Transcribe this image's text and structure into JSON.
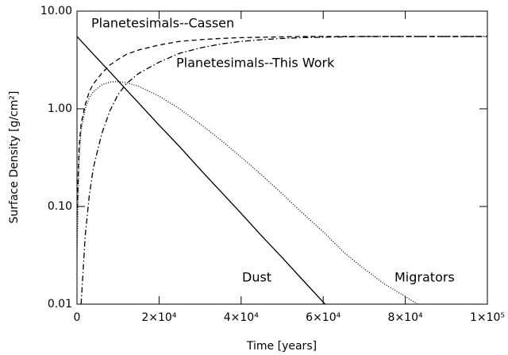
{
  "chart_data": {
    "type": "line",
    "log_y": true,
    "xlabel": "Time [years]",
    "ylabel": "Surface Density [g/cm²]",
    "x": [
      0,
      500,
      1000,
      2000,
      3000,
      4000,
      6000,
      8000,
      10000,
      12000,
      15000,
      20000,
      25000,
      30000,
      35000,
      40000,
      45000,
      50000,
      55000,
      60000,
      61000,
      65000,
      70000,
      75000,
      80000,
      83000,
      90000,
      100000
    ],
    "series": [
      {
        "name": "Planetesimals--Cassen",
        "color": "#000000",
        "dash": "dashed",
        "values": [
          0.08,
          0.4,
          0.7,
          1.1,
          1.5,
          1.8,
          2.3,
          2.8,
          3.2,
          3.6,
          4.0,
          4.5,
          4.9,
          5.1,
          5.25,
          5.35,
          5.4,
          5.45,
          5.5,
          5.5,
          5.5,
          5.5,
          5.5,
          5.5,
          5.5,
          5.5,
          5.5,
          5.5
        ]
      },
      {
        "name": "Planetesimals--This Work",
        "color": "#000000",
        "dash": "dashdot",
        "values": [
          null,
          null,
          0.01,
          0.05,
          0.13,
          0.25,
          0.55,
          0.95,
          1.4,
          1.8,
          2.3,
          3.0,
          3.7,
          4.2,
          4.6,
          4.9,
          5.1,
          5.25,
          5.35,
          5.4,
          5.42,
          5.45,
          5.5,
          5.5,
          5.5,
          5.5,
          5.5,
          5.5
        ]
      },
      {
        "name": "Dust",
        "color": "#000000",
        "dash": "solid",
        "values": [
          5.5,
          5.21,
          4.95,
          4.46,
          4.02,
          3.62,
          2.94,
          2.39,
          1.94,
          1.57,
          1.15,
          0.68,
          0.41,
          0.24,
          0.143,
          0.085,
          0.05,
          0.03,
          0.0177,
          0.0105,
          0.0095,
          null,
          null,
          null,
          null,
          null,
          null,
          null
        ]
      },
      {
        "name": "Migrators",
        "color": "#000000",
        "dash": "dotted",
        "values": [
          0.03,
          0.3,
          0.6,
          1.0,
          1.3,
          1.5,
          1.75,
          1.88,
          1.9,
          1.85,
          1.7,
          1.35,
          1.0,
          0.7,
          0.48,
          0.32,
          0.21,
          0.135,
          0.085,
          0.055,
          0.05,
          0.034,
          0.023,
          0.016,
          0.012,
          0.01,
          null,
          null
        ]
      }
    ],
    "xlim": [
      0,
      100000
    ],
    "xticks": [
      0,
      {
        "value": 20000,
        "label": "2×10⁴"
      },
      {
        "value": 40000,
        "label": "4×10⁴"
      },
      {
        "value": 60000,
        "label": "6×10⁴"
      },
      {
        "value": 80000,
        "label": "8×10⁴"
      },
      {
        "value": 100000,
        "label": "1×10⁵"
      }
    ],
    "ylim": [
      0.01,
      10
    ],
    "yticks": [
      {
        "value": 0.01,
        "label": "0.01"
      },
      {
        "value": 0.1,
        "label": "0.10"
      },
      {
        "value": 1,
        "label": "1.00"
      },
      {
        "value": 10,
        "label": "10.00"
      }
    ]
  }
}
